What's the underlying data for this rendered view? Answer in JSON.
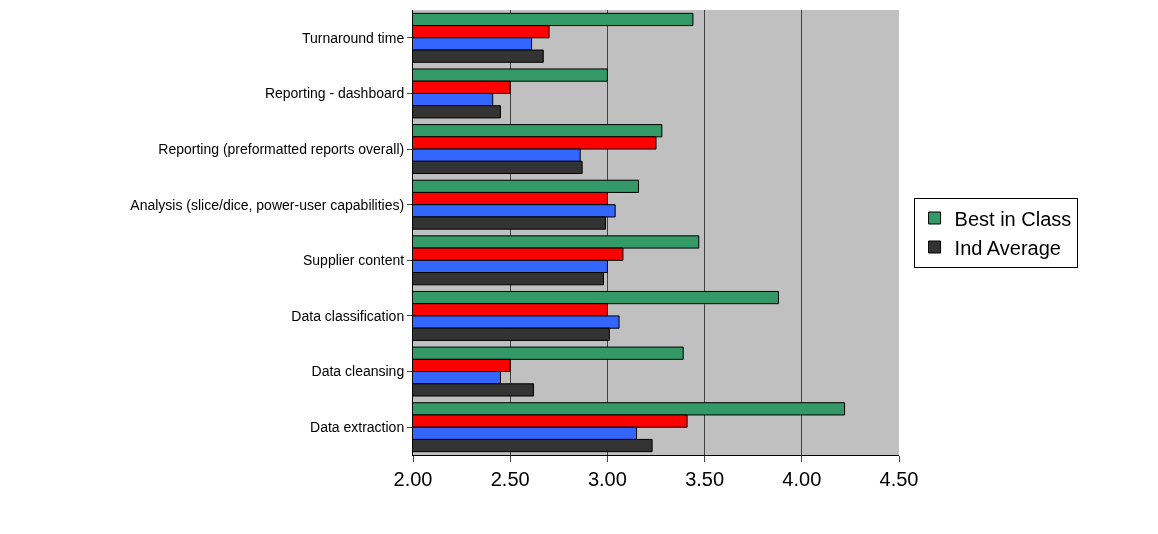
{
  "chart_data": {
    "type": "bar",
    "orientation": "horizontal",
    "categories": [
      "Turnaround time",
      "Reporting - dashboard",
      "Reporting (preformatted reports overall)",
      "Analysis (slice/dice, power-user capabilities)",
      "Supplier content",
      "Data classification",
      "Data cleansing",
      "Data extraction"
    ],
    "series": [
      {
        "name": "Best in Class",
        "color": "#339966",
        "values": [
          3.44,
          3.0,
          3.28,
          3.16,
          3.47,
          3.88,
          3.39,
          4.22
        ]
      },
      {
        "color": "#ff0000",
        "values": [
          2.7,
          2.5,
          3.25,
          3.0,
          3.08,
          3.0,
          2.5,
          3.41
        ]
      },
      {
        "color": "#3366ff",
        "values": [
          2.61,
          2.41,
          2.86,
          3.04,
          3.0,
          3.06,
          2.45,
          3.15
        ]
      },
      {
        "name": "Ind Average",
        "color": "#333333",
        "values": [
          2.67,
          2.45,
          2.87,
          2.99,
          2.98,
          3.01,
          2.62,
          3.23
        ]
      }
    ],
    "xlim": [
      2,
      4.5
    ],
    "xticks": [
      {
        "value": 2,
        "label": "2.00"
      },
      {
        "value": 2.5,
        "label": "2.50"
      },
      {
        "value": 3,
        "label": "3.00"
      },
      {
        "value": 3.5,
        "label": "3.50"
      },
      {
        "value": 4,
        "label": "4.00"
      },
      {
        "value": 4.5,
        "label": "4.50"
      }
    ],
    "grid": "x",
    "legend": "right"
  }
}
